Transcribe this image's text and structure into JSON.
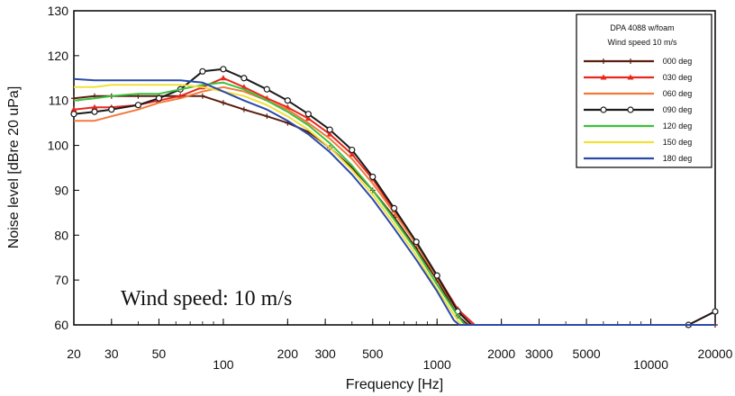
{
  "chart_data": {
    "type": "line",
    "xlabel": "Frequency [Hz]",
    "ylabel": "Noise level [dBre 20 uPa]",
    "x_scale": "log",
    "xlim": [
      20,
      20000
    ],
    "ylim": [
      60,
      130
    ],
    "x_ticks": [
      20,
      30,
      50,
      100,
      200,
      300,
      500,
      1000,
      2000,
      3000,
      5000,
      10000,
      20000
    ],
    "x_tick_labels": [
      "20",
      "30",
      "50",
      "100",
      "200",
      "300",
      "500",
      "1000",
      "2000",
      "3000",
      "5000",
      "10000",
      "20000"
    ],
    "y_ticks": [
      60,
      70,
      80,
      90,
      100,
      110,
      120,
      130
    ],
    "y_tick_labels": [
      "60",
      "70",
      "80",
      "90",
      "100",
      "110",
      "120",
      "130"
    ],
    "grid": false,
    "legend": {
      "position": "top-right",
      "title_lines": [
        "DPA 4088 w/foam",
        "Wind speed 10 m/s"
      ]
    },
    "annotation": "Wind speed: 10 m/s",
    "series": [
      {
        "name": "000 deg",
        "color": "#5a1e10",
        "marker": "plus",
        "points": [
          [
            20,
            110.5
          ],
          [
            25,
            111
          ],
          [
            30,
            111
          ],
          [
            40,
            111
          ],
          [
            50,
            111
          ],
          [
            63,
            111
          ],
          [
            80,
            111
          ],
          [
            100,
            109.5
          ],
          [
            125,
            108
          ],
          [
            160,
            106.5
          ],
          [
            200,
            105
          ],
          [
            250,
            103
          ],
          [
            315,
            99.5
          ],
          [
            400,
            95
          ],
          [
            500,
            90
          ],
          [
            630,
            84
          ],
          [
            800,
            77
          ],
          [
            1000,
            70
          ],
          [
            1250,
            62
          ],
          [
            1400,
            60
          ],
          [
            20000,
            60
          ]
        ]
      },
      {
        "name": "030 deg",
        "color": "#e8281e",
        "marker": "triangle",
        "points": [
          [
            20,
            108
          ],
          [
            25,
            108.5
          ],
          [
            30,
            108.5
          ],
          [
            40,
            109
          ],
          [
            50,
            110
          ],
          [
            63,
            111
          ],
          [
            80,
            113
          ],
          [
            100,
            115
          ],
          [
            125,
            113
          ],
          [
            160,
            110.5
          ],
          [
            200,
            108.5
          ],
          [
            250,
            106
          ],
          [
            315,
            102.5
          ],
          [
            400,
            98
          ],
          [
            500,
            92.5
          ],
          [
            630,
            85.5
          ],
          [
            800,
            78.5
          ],
          [
            1000,
            71
          ],
          [
            1250,
            63.5
          ],
          [
            1500,
            60
          ],
          [
            15000,
            60
          ],
          [
            20000,
            63
          ]
        ]
      },
      {
        "name": "060 deg",
        "color": "#f07a3a",
        "marker": "none",
        "points": [
          [
            20,
            105.5
          ],
          [
            25,
            105.5
          ],
          [
            30,
            106.5
          ],
          [
            40,
            108
          ],
          [
            50,
            109.5
          ],
          [
            63,
            110.5
          ],
          [
            80,
            112
          ],
          [
            100,
            113
          ],
          [
            125,
            112
          ],
          [
            160,
            110
          ],
          [
            200,
            108
          ],
          [
            250,
            105
          ],
          [
            315,
            101.5
          ],
          [
            400,
            97
          ],
          [
            500,
            91.5
          ],
          [
            630,
            85
          ],
          [
            800,
            78
          ],
          [
            1000,
            70.5
          ],
          [
            1250,
            63
          ],
          [
            1450,
            60
          ],
          [
            20000,
            60
          ]
        ]
      },
      {
        "name": "090 deg",
        "color": "#1a1a1a",
        "marker": "circle",
        "points": [
          [
            20,
            107
          ],
          [
            25,
            107.5
          ],
          [
            30,
            108
          ],
          [
            40,
            109
          ],
          [
            50,
            110.5
          ],
          [
            63,
            112.5
          ],
          [
            80,
            116.5
          ],
          [
            100,
            117
          ],
          [
            125,
            115
          ],
          [
            160,
            112.5
          ],
          [
            200,
            110
          ],
          [
            250,
            107
          ],
          [
            315,
            103.5
          ],
          [
            400,
            99
          ],
          [
            500,
            93
          ],
          [
            630,
            86
          ],
          [
            800,
            78.5
          ],
          [
            1000,
            71
          ],
          [
            1250,
            63
          ],
          [
            1450,
            60
          ],
          [
            15000,
            60
          ],
          [
            20000,
            63
          ]
        ]
      },
      {
        "name": "120 deg",
        "color": "#3cc03c",
        "marker": "none",
        "points": [
          [
            20,
            110
          ],
          [
            25,
            110.5
          ],
          [
            30,
            111
          ],
          [
            40,
            111.5
          ],
          [
            50,
            111.5
          ],
          [
            63,
            112.5
          ],
          [
            80,
            113.5
          ],
          [
            100,
            114
          ],
          [
            125,
            112.5
          ],
          [
            160,
            110
          ],
          [
            200,
            107.5
          ],
          [
            250,
            104.5
          ],
          [
            315,
            100.5
          ],
          [
            400,
            95.5
          ],
          [
            500,
            90
          ],
          [
            630,
            83.5
          ],
          [
            800,
            76.5
          ],
          [
            1000,
            69
          ],
          [
            1250,
            62
          ],
          [
            1350,
            60
          ],
          [
            20000,
            60
          ]
        ]
      },
      {
        "name": "150 deg",
        "color": "#f2e03a",
        "marker": "none",
        "points": [
          [
            20,
            113
          ],
          [
            25,
            113
          ],
          [
            30,
            113.5
          ],
          [
            40,
            113.5
          ],
          [
            50,
            113.5
          ],
          [
            63,
            113.5
          ],
          [
            80,
            113
          ],
          [
            100,
            112
          ],
          [
            125,
            111
          ],
          [
            160,
            109
          ],
          [
            200,
            106.5
          ],
          [
            250,
            103.5
          ],
          [
            315,
            99.5
          ],
          [
            400,
            94.5
          ],
          [
            500,
            89
          ],
          [
            630,
            82.5
          ],
          [
            800,
            75.5
          ],
          [
            1000,
            68
          ],
          [
            1250,
            61
          ],
          [
            1300,
            60
          ],
          [
            20000,
            60
          ]
        ]
      },
      {
        "name": "180 deg",
        "color": "#2a4aa8",
        "marker": "none",
        "points": [
          [
            20,
            114.8
          ],
          [
            25,
            114.5
          ],
          [
            30,
            114.5
          ],
          [
            40,
            114.5
          ],
          [
            50,
            114.5
          ],
          [
            63,
            114.5
          ],
          [
            80,
            114
          ],
          [
            100,
            112
          ],
          [
            125,
            110
          ],
          [
            160,
            108
          ],
          [
            200,
            105.5
          ],
          [
            250,
            102.5
          ],
          [
            315,
            98.5
          ],
          [
            400,
            93.5
          ],
          [
            500,
            88
          ],
          [
            630,
            81.5
          ],
          [
            800,
            74.5
          ],
          [
            1000,
            67.5
          ],
          [
            1200,
            61
          ],
          [
            1270,
            60
          ],
          [
            20000,
            60
          ]
        ]
      }
    ]
  }
}
